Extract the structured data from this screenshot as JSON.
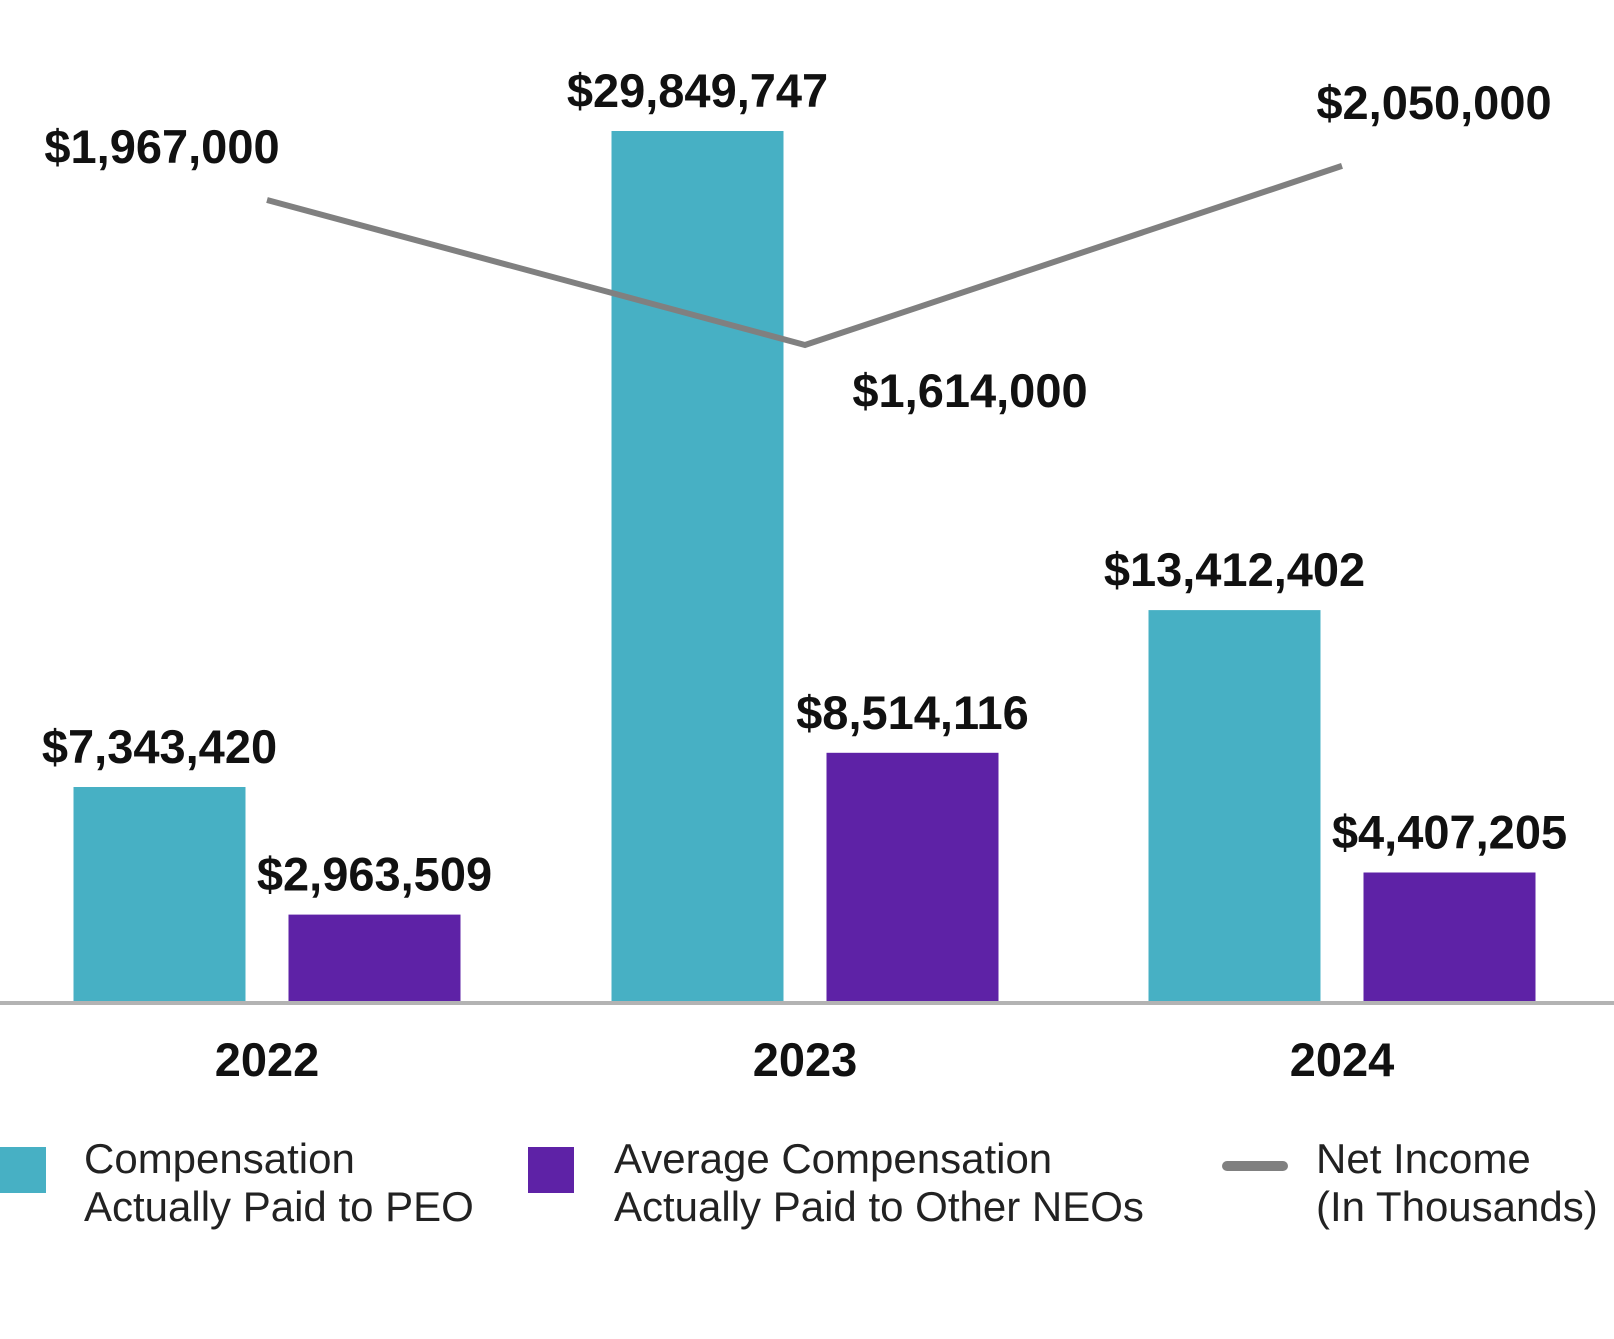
{
  "chart_data": {
    "type": "bar",
    "categories": [
      "2022",
      "2023",
      "2024"
    ],
    "series": [
      {
        "name": "Compensation Actually Paid to PEO",
        "kind": "bar",
        "color": "#47b0c4",
        "values": [
          7343420,
          29849747,
          13412402
        ],
        "labels": [
          "$7,343,420",
          "$29,849,747",
          "$13,412,402"
        ]
      },
      {
        "name": "Average Compensation Actually Paid to Other NEOs",
        "kind": "bar",
        "color": "#5e22a6",
        "values": [
          2963509,
          8514116,
          4407205
        ],
        "labels": [
          "$2,963,509",
          "$8,514,116",
          "$4,407,205"
        ]
      },
      {
        "name": "Net Income (In Thousands)",
        "kind": "line",
        "color": "#808080",
        "values": [
          1967000,
          1614000,
          2050000
        ],
        "labels": [
          "$1,967,000",
          "$1,614,000",
          "$2,050,000"
        ]
      }
    ],
    "title": "",
    "xlabel": "",
    "ylabel": "",
    "grid": false,
    "legend_position": "bottom"
  },
  "legend": [
    {
      "line1": "Compensation",
      "line2": "Actually Paid to PEO",
      "color": "#47b0c4",
      "marker": "square"
    },
    {
      "line1": "Average Compensation",
      "line2": "Actually Paid to Other NEOs",
      "color": "#5e22a6",
      "marker": "square"
    },
    {
      "line1": "Net Income",
      "line2": "(In Thousands)",
      "color": "#808080",
      "marker": "line"
    }
  ]
}
